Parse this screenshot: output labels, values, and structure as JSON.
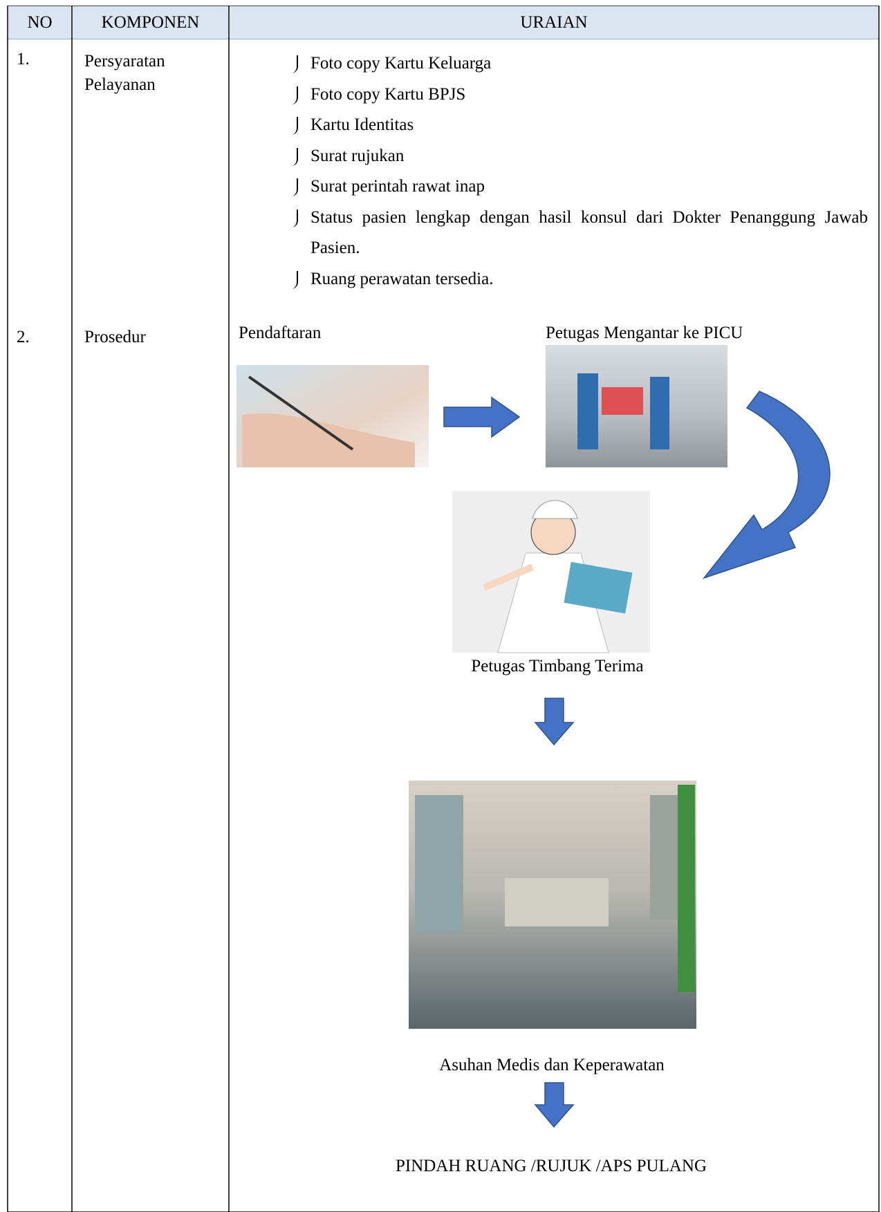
{
  "table": {
    "header": [
      "NO",
      "KOMPONEN",
      "URAIAN"
    ],
    "rows": [
      {
        "no": "1.",
        "component": "Persyaratan Pelayanan",
        "items": [
          "Foto copy Kartu Keluarga",
          "Foto copy Kartu BPJS",
          "Kartu Identitas",
          "Surat rujukan",
          "Surat perintah rawat inap",
          "Status pasien lengkap dengan hasil konsul dari Dokter Penanggung Jawab Pasien.",
          "Ruang perawatan tersedia."
        ]
      },
      {
        "no": "2.",
        "component": "Prosedur",
        "flow": [
          "Pendaftaran",
          "Petugas Mengantar ke PICU",
          "Petugas Timbang Terima",
          "Asuhan Medis dan Keperawatan",
          "PINDAH RUANG /RUJUK /APS PULANG"
        ]
      }
    ]
  }
}
